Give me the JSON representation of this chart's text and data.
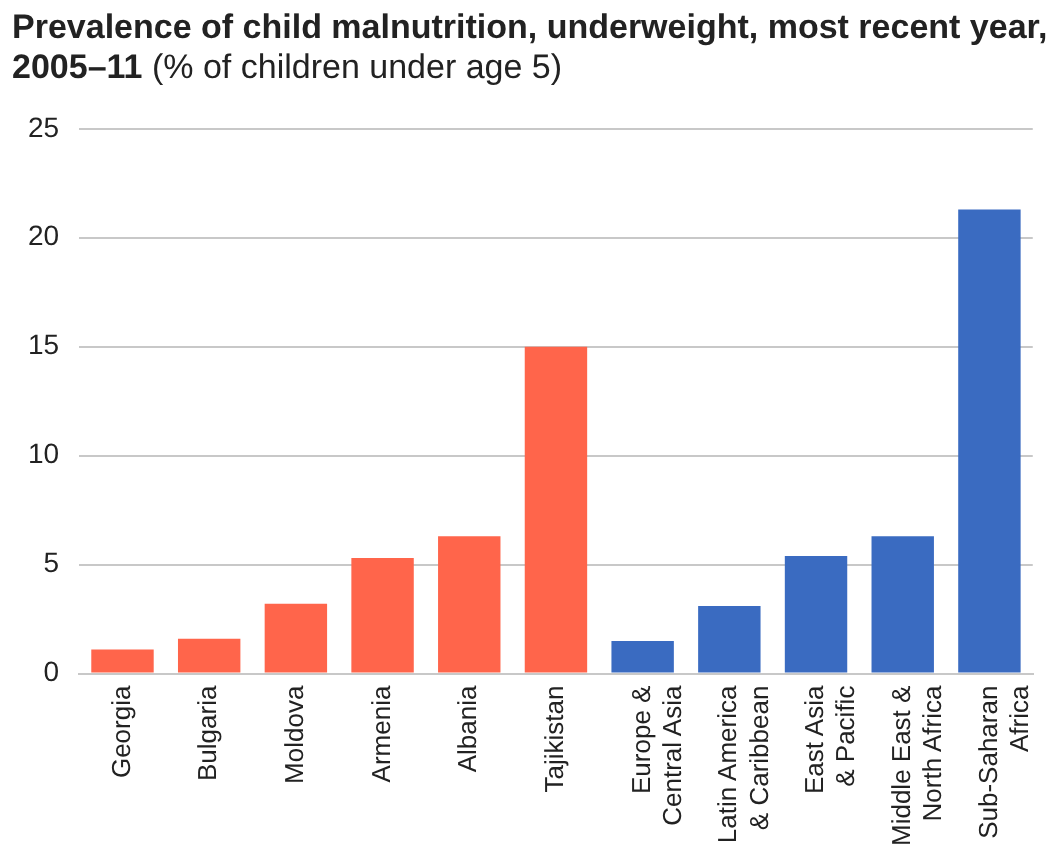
{
  "chart_data": {
    "type": "bar",
    "title": "Prevalence of child malnutrition, underweight, most recent year, 2005–11 (% of children under age 5)",
    "categories": [
      "Georgia",
      "Bulgaria",
      "Moldova",
      "Armenia",
      "Albania",
      "Tajikistan",
      "Europe &\nCentral Asia",
      "Latin America\n& Caribbean",
      "East Asia\n& Pacific",
      "Middle East &\nNorth Africa",
      "Sub-Saharan\nAfrica"
    ],
    "values": [
      1.1,
      1.6,
      3.2,
      5.3,
      6.3,
      15.0,
      1.5,
      3.1,
      5.4,
      6.3,
      21.3
    ],
    "colors": [
      "#ff654b",
      "#ff654b",
      "#ff654b",
      "#ff654b",
      "#ff654b",
      "#ff654b",
      "#3a6bc1",
      "#3a6bc1",
      "#3a6bc1",
      "#3a6bc1",
      "#3a6bc1"
    ],
    "ylim": [
      0,
      25
    ],
    "yticks": [
      0,
      5,
      10,
      15,
      20,
      25
    ],
    "grid": "y",
    "legend": false
  }
}
